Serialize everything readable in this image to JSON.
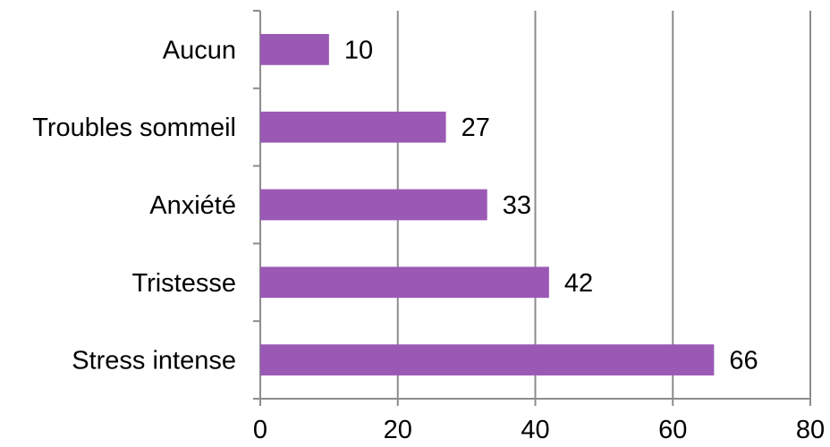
{
  "chart_data": {
    "type": "bar",
    "orientation": "horizontal",
    "categories": [
      "Aucun",
      "Troubles sommeil",
      "Anxiété",
      "Tristesse",
      "Stress intense"
    ],
    "values": [
      10,
      27,
      33,
      42,
      66
    ],
    "xticks": [
      0,
      20,
      40,
      60,
      80
    ],
    "xlim": [
      0,
      80
    ],
    "title": "",
    "xlabel": "",
    "ylabel": "",
    "grid": "vertical",
    "legend": "none",
    "colors": {
      "bar": "#9b59b6",
      "grid": "#8c8c8c",
      "text": "#000000"
    }
  }
}
